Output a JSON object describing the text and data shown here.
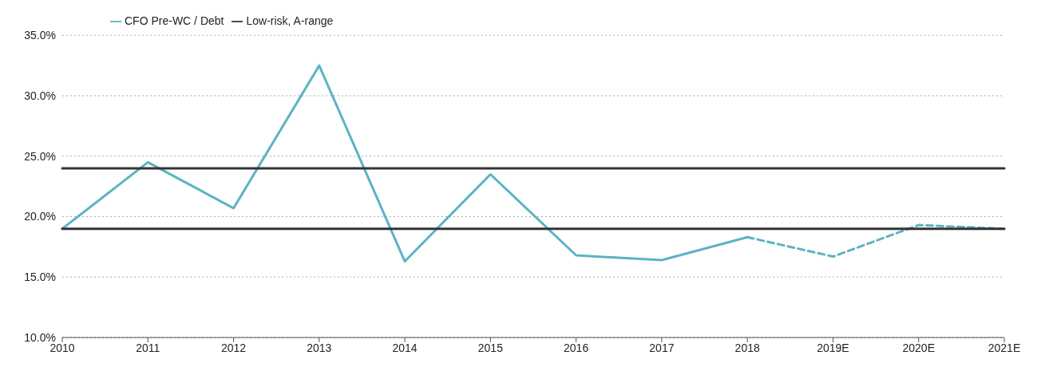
{
  "chart_data": {
    "type": "line",
    "categories": [
      "2010",
      "2011",
      "2012",
      "2013",
      "2014",
      "2015",
      "2016",
      "2017",
      "2018",
      "2019E",
      "2020E",
      "2021E"
    ],
    "series": [
      {
        "name": "CFO Pre-WC / Debt",
        "color": "#5bb3c4",
        "values": [
          19.0,
          24.5,
          20.7,
          32.5,
          16.3,
          23.5,
          16.8,
          16.4,
          18.3,
          null,
          null,
          null
        ]
      },
      {
        "color": "#5bb3c4",
        "line_style": "dashed",
        "values": [
          null,
          null,
          null,
          null,
          null,
          null,
          null,
          null,
          18.3,
          16.7,
          19.3,
          19.0
        ]
      },
      {
        "name": "Low-risk, A-range",
        "color": "#333333",
        "values": [
          24.0,
          24.0,
          24.0,
          24.0,
          24.0,
          24.0,
          24.0,
          24.0,
          24.0,
          24.0,
          24.0,
          24.0
        ]
      },
      {
        "color": "#333333",
        "values": [
          19.0,
          19.0,
          19.0,
          19.0,
          19.0,
          19.0,
          19.0,
          19.0,
          19.0,
          19.0,
          19.0,
          19.0
        ]
      }
    ],
    "ylim": [
      10,
      35
    ],
    "yticks": [
      {
        "value": 10,
        "label": "10.0%"
      },
      {
        "value": 15,
        "label": "15.0%"
      },
      {
        "value": 20,
        "label": "20.0%"
      },
      {
        "value": 25,
        "label": "25.0%"
      },
      {
        "value": 30,
        "label": "30.0%"
      },
      {
        "value": 35,
        "label": "35.0%"
      }
    ],
    "grid": "y",
    "legend": "top left",
    "marker": "none",
    "line_style": "solid"
  }
}
